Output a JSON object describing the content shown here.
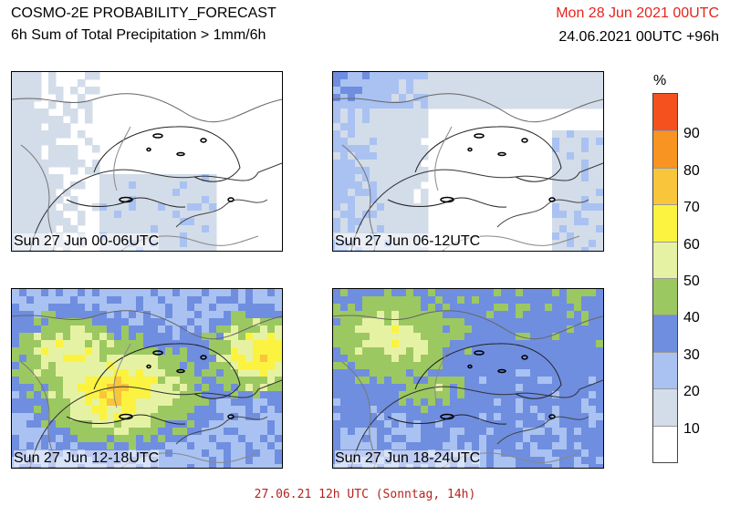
{
  "header": {
    "title": "COSMO-2E PROBABILITY_FORECAST",
    "subtitle": "6h Sum of Total Precipitation > 1mm/6h",
    "valid_date": "Mon 28 Jun 2021 00UTC",
    "run_info": "24.06.2021 00UTC +96h"
  },
  "panels": [
    {
      "label": "Sun 27 Jun 00-06UTC",
      "intensity": "low-southern"
    },
    {
      "label": "Sun 27 Jun 06-12UTC",
      "intensity": "low-western"
    },
    {
      "label": "Sun 27 Jun 12-18UTC",
      "intensity": "high"
    },
    {
      "label": "Sun 27 Jun 18-24UTC",
      "intensity": "medium"
    }
  ],
  "colorbar": {
    "unit": "%",
    "labels": [
      "90",
      "80",
      "70",
      "60",
      "50",
      "40",
      "30",
      "20",
      "10"
    ],
    "colors_top_to_bottom": [
      "#f4511e",
      "#f79422",
      "#f9c53a",
      "#fbf33f",
      "#e6f2a3",
      "#9cc861",
      "#6f8ee0",
      "#a9c2f2",
      "#d3dce9",
      "#ffffff"
    ]
  },
  "footer": {
    "text": "27.06.21 12h UTC (Sonntag, 14h)"
  },
  "colors": {
    "valid_date": "#e8231c",
    "footer": "#b5231f"
  }
}
